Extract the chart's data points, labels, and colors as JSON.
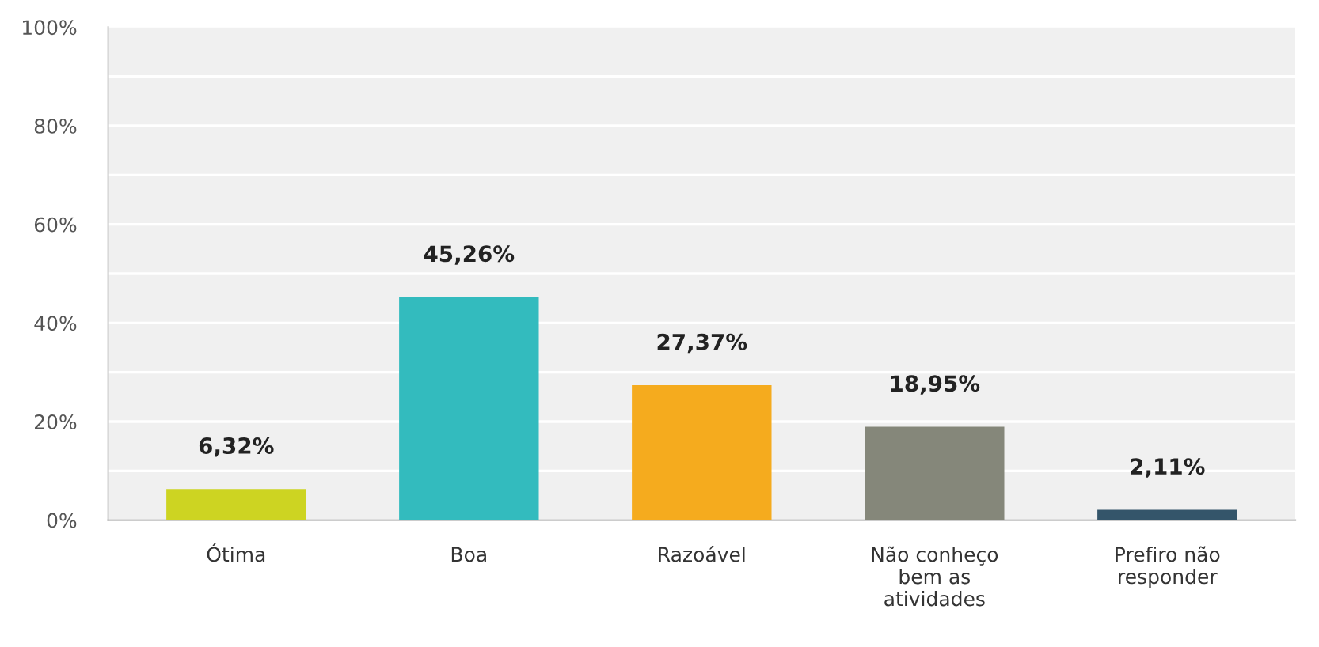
{
  "chart_data": {
    "type": "bar",
    "categories": [
      "Ótima",
      "Boa",
      "Razoável",
      "Não conheço bem as atividades",
      "Prefiro não responder"
    ],
    "values": [
      6.32,
      45.26,
      27.37,
      18.95,
      2.11
    ],
    "colors": [
      "#cdd422",
      "#33bbbe",
      "#f5ab1e",
      "#85877a",
      "#34556a"
    ],
    "value_labels": [
      "6,32%",
      "45,26%",
      "27,37%",
      "18,95%",
      "2,11%"
    ],
    "ylim": [
      0,
      100
    ],
    "yticks": [
      {
        "value": 0,
        "label": "0%"
      },
      {
        "value": 10,
        "label": null
      },
      {
        "value": 20,
        "label": "20%"
      },
      {
        "value": 30,
        "label": null
      },
      {
        "value": 40,
        "label": "40%"
      },
      {
        "value": 50,
        "label": null
      },
      {
        "value": 60,
        "label": "60%"
      },
      {
        "value": 70,
        "label": null
      },
      {
        "value": 80,
        "label": "80%"
      },
      {
        "value": 90,
        "label": null
      },
      {
        "value": 100,
        "label": "100%"
      }
    ],
    "grid": "y"
  }
}
